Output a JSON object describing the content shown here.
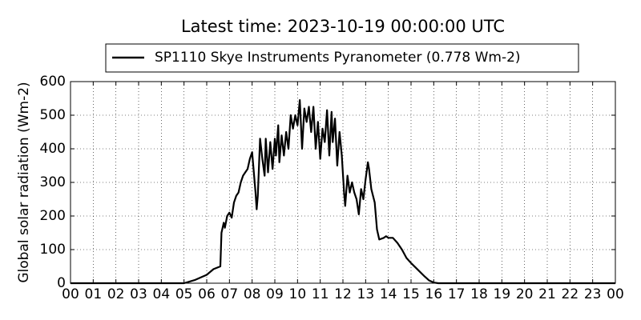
{
  "chart_data": {
    "type": "line",
    "title": "Latest time: 2023-10-19 00:00:00 UTC",
    "ylabel": "Global solar radiation (Wm-2)",
    "x": [
      0,
      5.0,
      5.5,
      6.0,
      6.3,
      6.6,
      6.65,
      6.75,
      6.8,
      6.9,
      7.0,
      7.1,
      7.2,
      7.3,
      7.4,
      7.5,
      7.6,
      7.7,
      7.8,
      7.9,
      8.0,
      8.05,
      8.15,
      8.2,
      8.25,
      8.35,
      8.45,
      8.55,
      8.6,
      8.7,
      8.8,
      8.9,
      9.0,
      9.05,
      9.15,
      9.2,
      9.3,
      9.4,
      9.5,
      9.6,
      9.7,
      9.8,
      9.9,
      10.0,
      10.1,
      10.2,
      10.3,
      10.4,
      10.5,
      10.6,
      10.7,
      10.8,
      10.9,
      11.0,
      11.1,
      11.2,
      11.3,
      11.4,
      11.5,
      11.55,
      11.65,
      11.75,
      11.85,
      11.95,
      12.05,
      12.1,
      12.2,
      12.3,
      12.4,
      12.5,
      12.6,
      12.7,
      12.8,
      12.9,
      13.0,
      13.1,
      13.15,
      13.25,
      13.4,
      13.5,
      13.6,
      13.8,
      13.9,
      14.0,
      14.2,
      14.4,
      14.6,
      14.8,
      15.0,
      15.3,
      15.6,
      15.8,
      16.0,
      16.2,
      24
    ],
    "series": [
      {
        "name": "SP1110 Skye Instruments Pyranometer (0.778 Wm-2)",
        "color": "#000000",
        "values": [
          0,
          0,
          10,
          25,
          42,
          50,
          150,
          180,
          165,
          200,
          210,
          195,
          240,
          260,
          270,
          300,
          320,
          330,
          340,
          370,
          390,
          350,
          270,
          220,
          260,
          430,
          370,
          320,
          430,
          330,
          420,
          340,
          430,
          380,
          470,
          360,
          440,
          380,
          450,
          400,
          500,
          460,
          500,
          470,
          545,
          400,
          520,
          480,
          525,
          450,
          525,
          400,
          480,
          370,
          460,
          420,
          515,
          380,
          510,
          420,
          490,
          350,
          450,
          380,
          270,
          230,
          320,
          270,
          300,
          270,
          250,
          205,
          280,
          250,
          310,
          360,
          340,
          280,
          240,
          160,
          130,
          135,
          140,
          135,
          135,
          120,
          100,
          75,
          60,
          40,
          20,
          8,
          2,
          0,
          0
        ]
      }
    ],
    "xlim": [
      0,
      24
    ],
    "xticks": [
      {
        "value": 0,
        "label": "00"
      },
      {
        "value": 1,
        "label": "01"
      },
      {
        "value": 2,
        "label": "02"
      },
      {
        "value": 3,
        "label": "03"
      },
      {
        "value": 4,
        "label": "04"
      },
      {
        "value": 5,
        "label": "05"
      },
      {
        "value": 6,
        "label": "06"
      },
      {
        "value": 7,
        "label": "07"
      },
      {
        "value": 8,
        "label": "08"
      },
      {
        "value": 9,
        "label": "09"
      },
      {
        "value": 10,
        "label": "10"
      },
      {
        "value": 11,
        "label": "11"
      },
      {
        "value": 12,
        "label": "12"
      },
      {
        "value": 13,
        "label": "13"
      },
      {
        "value": 14,
        "label": "14"
      },
      {
        "value": 15,
        "label": "15"
      },
      {
        "value": 16,
        "label": "16"
      },
      {
        "value": 17,
        "label": "17"
      },
      {
        "value": 18,
        "label": "18"
      },
      {
        "value": 19,
        "label": "19"
      },
      {
        "value": 20,
        "label": "20"
      },
      {
        "value": 21,
        "label": "21"
      },
      {
        "value": 22,
        "label": "22"
      },
      {
        "value": 23,
        "label": "23"
      },
      {
        "value": 24,
        "label": "00"
      }
    ],
    "ylim": [
      0,
      600
    ],
    "yticks": [
      0,
      100,
      200,
      300,
      400,
      500,
      600
    ],
    "grid": true
  }
}
